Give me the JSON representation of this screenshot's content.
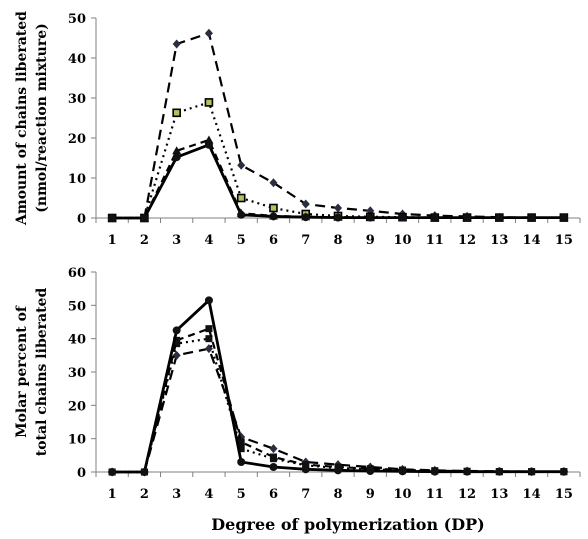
{
  "chart_data": [
    {
      "type": "line",
      "ylabel_line1": "Amount of chains liberated",
      "ylabel_line2": "(nmol/reaction mixture)",
      "x": [
        1,
        2,
        3,
        4,
        5,
        6,
        7,
        8,
        9,
        10,
        11,
        12,
        13,
        14,
        15
      ],
      "ylim": [
        0,
        50
      ],
      "yticks": [
        0,
        10,
        20,
        30,
        40,
        50
      ],
      "grid": false,
      "series": [
        {
          "style": "dash-long",
          "marker": "diamond",
          "values": [
            0,
            0,
            43.5,
            46.2,
            13.2,
            8.8,
            3.5,
            2.5,
            1.8,
            1.0,
            0.6,
            0.4,
            0.2,
            0.1,
            0.1
          ]
        },
        {
          "style": "dot",
          "marker": "square-light",
          "values": [
            0,
            0,
            26.3,
            28.9,
            5.0,
            2.5,
            1.0,
            0.5,
            0.3,
            0.2,
            0.1,
            0.1,
            0.1,
            0.1,
            0.1
          ]
        },
        {
          "style": "dash",
          "marker": "triangle",
          "values": [
            0,
            0,
            16.8,
            19.5,
            1.2,
            0.5,
            0.3,
            0.2,
            0.1,
            0.1,
            0.1,
            0.1,
            0.1,
            0.1,
            0.1
          ]
        },
        {
          "style": "solid",
          "marker": "circle",
          "values": [
            0,
            0,
            15.2,
            18.3,
            0.8,
            0.4,
            0.2,
            0.1,
            0.1,
            0.1,
            0.1,
            0.1,
            0.1,
            0.1,
            0.1
          ]
        }
      ]
    },
    {
      "type": "line",
      "ylabel_line1": "Molar percent of",
      "ylabel_line2": "total chains liberated",
      "xlabel": "Degree of polymerization (DP)",
      "x": [
        1,
        2,
        3,
        4,
        5,
        6,
        7,
        8,
        9,
        10,
        11,
        12,
        13,
        14,
        15
      ],
      "ylim": [
        0,
        60
      ],
      "yticks": [
        0,
        10,
        20,
        30,
        40,
        50,
        60
      ],
      "grid": false,
      "series": [
        {
          "style": "dash-long",
          "marker": "diamond",
          "values": [
            0,
            0,
            35.0,
            37.0,
            10.5,
            7.0,
            3.0,
            2.2,
            1.5,
            0.8,
            0.5,
            0.3,
            0.2,
            0.1,
            0.1
          ]
        },
        {
          "style": "dot",
          "marker": "square",
          "values": [
            0,
            0,
            38.5,
            40.0,
            7.0,
            4.0,
            2.0,
            1.2,
            0.8,
            0.5,
            0.3,
            0.2,
            0.1,
            0.1,
            0.1
          ]
        },
        {
          "style": "dash",
          "marker": "square",
          "values": [
            0,
            0,
            39.5,
            43.0,
            9.0,
            4.5,
            2.2,
            1.5,
            1.0,
            0.6,
            0.4,
            0.2,
            0.1,
            0.1,
            0.1
          ]
        },
        {
          "style": "solid",
          "marker": "circle",
          "values": [
            0,
            0,
            42.5,
            51.5,
            3.0,
            1.5,
            0.8,
            0.5,
            0.3,
            0.2,
            0.1,
            0.1,
            0.1,
            0.1,
            0.1
          ]
        }
      ]
    }
  ]
}
